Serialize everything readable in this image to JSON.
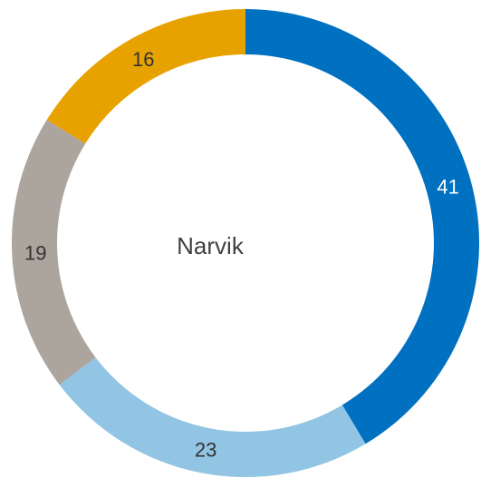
{
  "chart_data": {
    "type": "donut",
    "center_label": "Narvik",
    "values": [
      41,
      23,
      19,
      16
    ],
    "colors": [
      "#0070c0",
      "#92c5e3",
      "#aca59d",
      "#e8a200"
    ],
    "label_colors": [
      "#ffffff",
      "#333333",
      "#333333",
      "#333333"
    ]
  }
}
